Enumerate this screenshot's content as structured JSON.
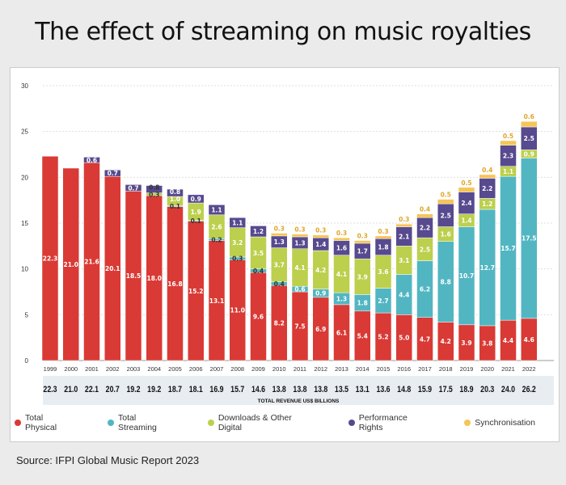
{
  "title": "The effect of streaming on music royalties",
  "source": "Source: IFPI Global Music Report 2023",
  "chart_data": {
    "type": "bar",
    "stacked": true,
    "title": "The effect of streaming on music royalties",
    "xlabel": "",
    "ylabel": "",
    "ylim": [
      0,
      30
    ],
    "yticks": [
      0,
      5,
      10,
      15,
      20,
      25,
      30
    ],
    "grid": true,
    "legend_position": "bottom",
    "categories": [
      "1999",
      "2000",
      "2001",
      "2002",
      "2003",
      "2004",
      "2005",
      "2006",
      "2007",
      "2008",
      "2009",
      "2010",
      "2011",
      "2012",
      "2013",
      "2014",
      "2015",
      "2016",
      "2017",
      "2018",
      "2019",
      "2020",
      "2021",
      "2022"
    ],
    "series": [
      {
        "name": "Total Physical",
        "color": "#d93a35",
        "values": [
          22.3,
          21.0,
          21.6,
          20.1,
          18.5,
          18.0,
          16.8,
          15.2,
          13.1,
          11.0,
          9.6,
          8.2,
          7.5,
          6.9,
          6.1,
          5.4,
          5.2,
          5.0,
          4.7,
          4.2,
          3.9,
          3.8,
          4.4,
          4.6
        ]
      },
      {
        "name": "Total Streaming",
        "color": "#52b6c2",
        "values": [
          null,
          null,
          null,
          null,
          null,
          null,
          0.1,
          0.1,
          0.2,
          0.3,
          0.4,
          0.4,
          0.6,
          0.9,
          1.3,
          1.8,
          2.7,
          4.4,
          6.2,
          8.8,
          10.7,
          12.7,
          15.7,
          17.5
        ]
      },
      {
        "name": "Downloads & Other Digital",
        "color": "#bcd04e",
        "values": [
          null,
          null,
          null,
          null,
          null,
          0.3,
          1.0,
          1.9,
          2.6,
          3.2,
          3.5,
          3.7,
          4.1,
          4.2,
          4.1,
          3.9,
          3.6,
          3.1,
          2.5,
          1.6,
          1.4,
          1.2,
          1.1,
          0.9
        ]
      },
      {
        "name": "Performance Rights",
        "color": "#574a8e",
        "values": [
          null,
          null,
          0.6,
          0.7,
          0.7,
          0.8,
          0.8,
          0.9,
          1.1,
          1.1,
          1.2,
          1.3,
          1.3,
          1.4,
          1.6,
          1.7,
          1.8,
          2.1,
          2.2,
          2.5,
          2.4,
          2.2,
          2.3,
          2.5
        ]
      },
      {
        "name": "Synchronisation",
        "color": "#f6c556",
        "values": [
          null,
          null,
          null,
          null,
          null,
          null,
          null,
          null,
          null,
          null,
          null,
          0.3,
          0.3,
          0.3,
          0.3,
          0.3,
          0.3,
          0.3,
          0.4,
          0.5,
          0.5,
          0.4,
          0.5,
          0.6
        ]
      }
    ],
    "totals_label": "TOTAL REVENUE US$ BILLIONS",
    "totals": [
      "22.3",
      "21.0",
      "22.1",
      "20.7",
      "19.2",
      "19.2",
      "18.7",
      "18.1",
      "16.9",
      "15.7",
      "14.6",
      "13.8",
      "13.8",
      "13.8",
      "13.5",
      "13.1",
      "13.6",
      "14.8",
      "15.9",
      "17.5",
      "18.9",
      "20.3",
      "24.0",
      "26.2"
    ]
  }
}
